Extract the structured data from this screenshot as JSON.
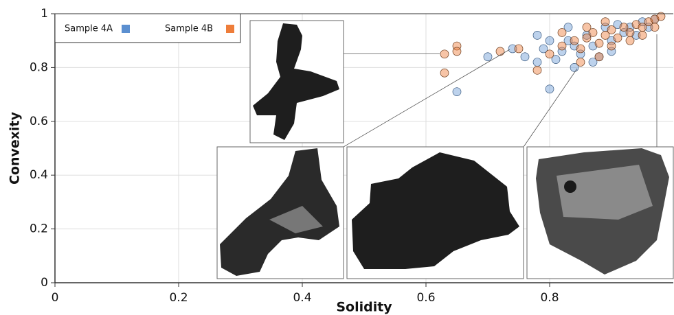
{
  "chart_data": {
    "type": "scatter",
    "x_label": "Solidity",
    "y_label": "Convexity",
    "xlim": [
      0,
      1
    ],
    "ylim": [
      0,
      1
    ],
    "xticks": [
      0,
      0.2,
      0.4,
      0.6,
      0.8
    ],
    "yticks": [
      0,
      0.2,
      0.4,
      0.6,
      0.8,
      1
    ],
    "grid": true,
    "legend": "top-left",
    "series": [
      {
        "name": "Sample 4A",
        "color": "#5b8fd0",
        "x": [
          0.7,
          0.65,
          0.8,
          0.76,
          0.78,
          0.82,
          0.84,
          0.85,
          0.87,
          0.88,
          0.9,
          0.92,
          0.93,
          0.95,
          0.97,
          0.79,
          0.83,
          0.86,
          0.89,
          0.91,
          0.81,
          0.84,
          0.87,
          0.9,
          0.94,
          0.96,
          0.78,
          0.8,
          0.74,
          0.83
        ],
        "y": [
          0.84,
          0.71,
          0.72,
          0.84,
          0.82,
          0.86,
          0.8,
          0.85,
          0.88,
          0.84,
          0.9,
          0.93,
          0.95,
          0.97,
          0.98,
          0.87,
          0.9,
          0.92,
          0.95,
          0.96,
          0.83,
          0.88,
          0.82,
          0.86,
          0.92,
          0.95,
          0.92,
          0.9,
          0.87,
          0.95
        ]
      },
      {
        "name": "Sample 4B",
        "color": "#ee7d3a",
        "x": [
          0.63,
          0.65,
          0.65,
          0.63,
          0.72,
          0.75,
          0.78,
          0.8,
          0.82,
          0.84,
          0.85,
          0.86,
          0.87,
          0.88,
          0.89,
          0.9,
          0.91,
          0.92,
          0.93,
          0.94,
          0.95,
          0.96,
          0.97,
          0.98,
          0.85,
          0.88,
          0.9,
          0.93,
          0.95,
          0.97,
          0.82,
          0.86,
          0.89
        ],
        "y": [
          0.85,
          0.88,
          0.86,
          0.78,
          0.86,
          0.87,
          0.79,
          0.85,
          0.88,
          0.9,
          0.87,
          0.91,
          0.93,
          0.89,
          0.92,
          0.94,
          0.91,
          0.95,
          0.93,
          0.96,
          0.95,
          0.97,
          0.98,
          0.99,
          0.82,
          0.84,
          0.88,
          0.9,
          0.92,
          0.95,
          0.93,
          0.95,
          0.97
        ]
      }
    ]
  }
}
